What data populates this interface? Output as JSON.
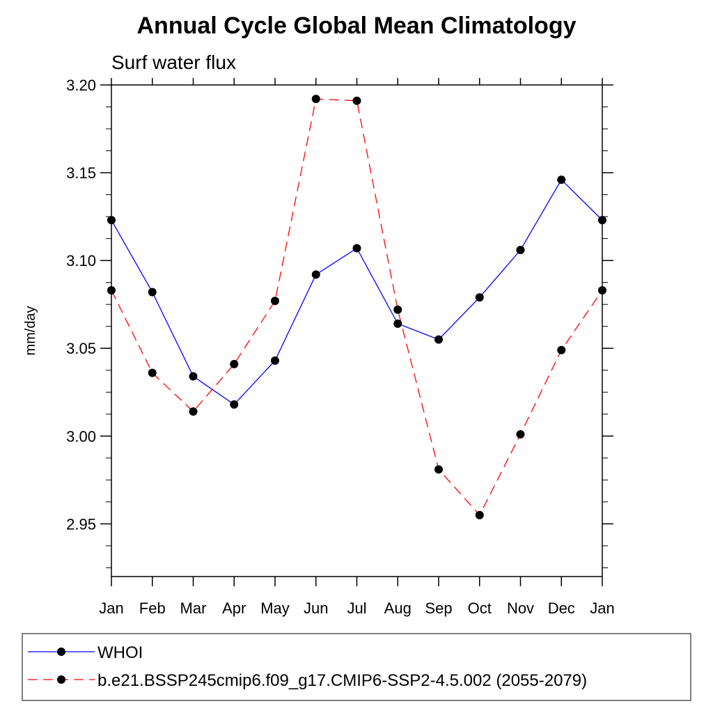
{
  "chart_data": {
    "type": "line",
    "title": "Annual Cycle Global Mean Climatology",
    "subtitle": "Surf water flux",
    "ylabel": "mm/day",
    "xlabel": "",
    "categories": [
      "Jan",
      "Feb",
      "Mar",
      "Apr",
      "May",
      "Jun",
      "Jul",
      "Aug",
      "Sep",
      "Oct",
      "Nov",
      "Dec",
      "Jan"
    ],
    "ylim": [
      2.92,
      3.2
    ],
    "yticks": [
      "3.20",
      "3.15",
      "3.10",
      "3.05",
      "3.00",
      "2.95"
    ],
    "ytick_values": [
      3.2,
      3.15,
      3.1,
      3.05,
      3.0,
      2.95
    ],
    "grid": false,
    "legend_position": "bottom",
    "series": [
      {
        "name": "WHOI",
        "color": "#0000ff",
        "dashed": false,
        "values": [
          3.123,
          3.082,
          3.034,
          3.018,
          3.043,
          3.092,
          3.107,
          3.064,
          3.055,
          3.079,
          3.106,
          3.146,
          3.123
        ]
      },
      {
        "name": "b.e21.BSSP245cmip6.f09_g17.CMIP6-SSP2-4.5.002 (2055-2079)",
        "color": "#ff0000",
        "dashed": true,
        "values": [
          3.083,
          3.036,
          3.014,
          3.041,
          3.077,
          3.192,
          3.191,
          3.072,
          2.981,
          2.955,
          3.001,
          3.049,
          3.083
        ]
      }
    ]
  }
}
